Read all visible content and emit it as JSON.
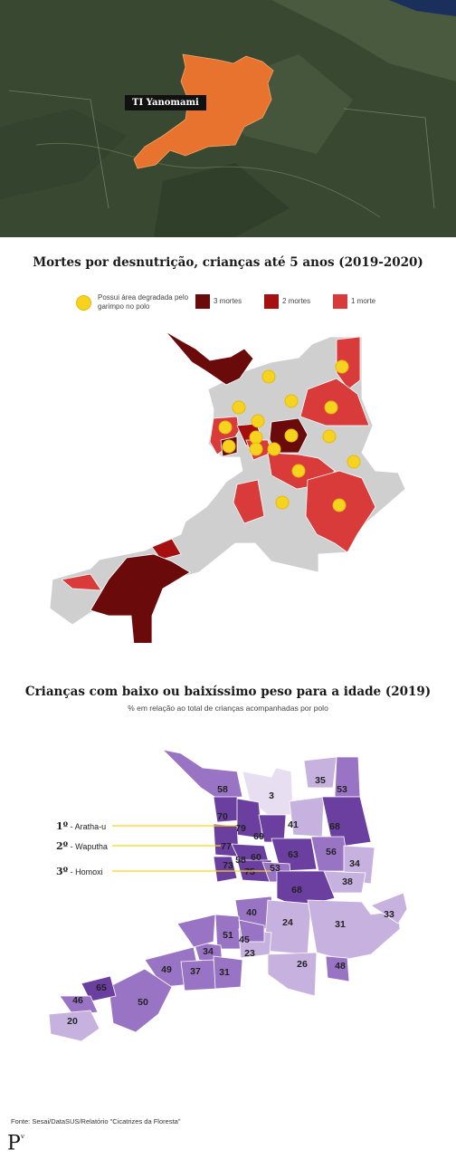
{
  "satellite": {
    "region_label": "TI Yanomami",
    "colors": {
      "forest": "#3a4a33",
      "highlight": "#e8732e",
      "sea": "#1a2f5c"
    }
  },
  "map1": {
    "title": "Mortes por desnutrição, crianças até 5 anos (2019-2020)",
    "legend": {
      "degraded": "Possui área degradada pelo garimpo no polo",
      "three": "3 mortes",
      "two": "2 mortes",
      "one": "1 morte"
    },
    "colors": {
      "three": "#6b0a0a",
      "two": "#a50f0f",
      "one": "#d93a3a",
      "none": "#cfcfcf",
      "dot": "#f6d31e"
    }
  },
  "map2": {
    "title": "Crianças com baixo ou baixíssimo peso para a idade (2019)",
    "subtitle": "% em relação ao total de crianças acompanhadas por polo",
    "ranks": [
      {
        "pos": "1º",
        "name": "- Aratha-u"
      },
      {
        "pos": "2º",
        "name": "- Waputha"
      },
      {
        "pos": "3º",
        "name": "- Homoxi"
      }
    ],
    "values": [
      "58",
      "3",
      "35",
      "53",
      "70",
      "79",
      "69",
      "41",
      "68",
      "77",
      "60",
      "63",
      "56",
      "34",
      "73",
      "58",
      "75",
      "53",
      "38",
      "68",
      "40",
      "24",
      "31",
      "33",
      "51",
      "45",
      "34",
      "23",
      "49",
      "37",
      "31",
      "26",
      "48",
      "65",
      "46",
      "50",
      "20"
    ],
    "colors": {
      "high": "#6b3fa0",
      "mid": "#9a74c4",
      "low": "#c7b2df",
      "lowest": "#e8def2"
    }
  },
  "footer": {
    "source": "Fonte: Sesai/DataSUS/Relatório \"Cicatrizes da Floresta\"",
    "logo": "P"
  }
}
